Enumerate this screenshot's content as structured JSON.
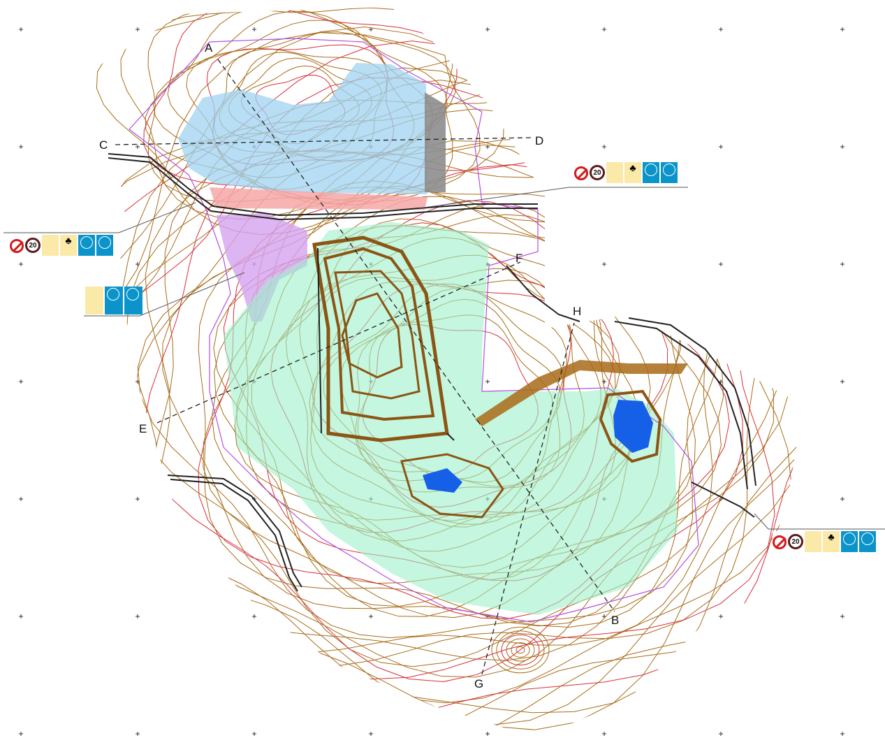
{
  "sections": {
    "A": "A",
    "B": "B",
    "C": "C",
    "D": "D",
    "E": "E",
    "F": "F",
    "G": "G",
    "H": "H"
  },
  "sign_panels": [
    {
      "speed": "20",
      "icons": [
        "no-entry-icon",
        "speed-limit-icon",
        "yellow-notice-icon",
        "hard-hat-icon",
        "ear-protection-icon"
      ]
    },
    {
      "speed": "20",
      "icons": [
        "no-entry-icon",
        "speed-limit-icon",
        "yellow-notice-icon",
        "hard-hat-icon",
        "ear-protection-icon"
      ]
    },
    {
      "icons": [
        "yellow-notice-icon",
        "hard-hat-icon",
        "ear-protection-icon"
      ]
    },
    {
      "speed": "20",
      "icons": [
        "no-entry-icon",
        "speed-limit-icon",
        "yellow-notice-icon",
        "hard-hat-icon",
        "ear-protection-icon"
      ]
    }
  ],
  "colors": {
    "contour": "#a86b17",
    "contour_index": "#d92b3a",
    "boundary": "#b54ee0",
    "zone_green": "#9ef0c9",
    "zone_blue": "#9fd3f1",
    "zone_pink": "#f6a7a7",
    "zone_purple": "#d4a2ef",
    "water": "#1560e6",
    "road": "#222222"
  }
}
